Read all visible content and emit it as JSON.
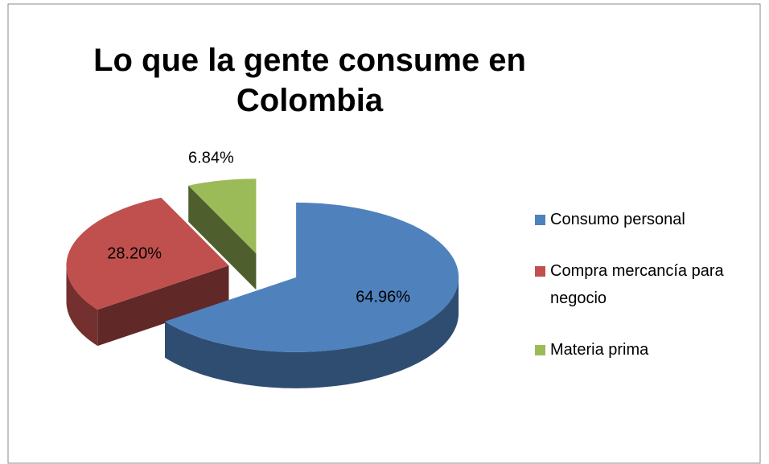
{
  "chart_data": {
    "type": "pie3d",
    "title": "Lo que la gente consume en Colombia",
    "categories": [
      "Consumo personal",
      "Compra mercancía para negocio",
      "Materia prima"
    ],
    "values": [
      64.96,
      28.2,
      6.84
    ],
    "value_labels": [
      "64.96%",
      "28.20%",
      "6.84%"
    ],
    "colors": [
      "#4f81bd",
      "#c0504d",
      "#9bbb59"
    ],
    "legend": "right"
  }
}
